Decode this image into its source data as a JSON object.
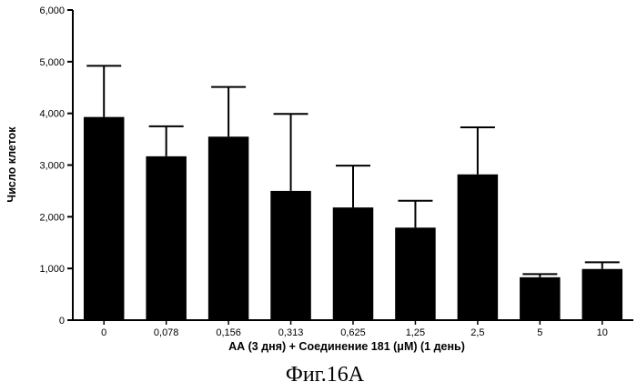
{
  "chart_data": {
    "type": "bar",
    "categories": [
      "0",
      "0,078",
      "0,156",
      "0,313",
      "0,625",
      "1,25",
      "2,5",
      "5",
      "10"
    ],
    "values": [
      3930,
      3170,
      3550,
      2500,
      2180,
      1790,
      2820,
      830,
      990
    ],
    "errors": [
      990,
      580,
      960,
      1490,
      810,
      520,
      910,
      60,
      130
    ],
    "xlabel": "АА (3 дня)  + Соединение 181 (μМ) (1 день)",
    "ylabel": "Число клеток",
    "ylim": [
      0,
      6000
    ],
    "yticks": [
      "0",
      "1,000",
      "2,000",
      "3,000",
      "4,000",
      "5,000",
      "6,000"
    ],
    "bar_color": "#000000",
    "error_bars": "upper",
    "grid": false
  },
  "caption": "Фиг.16А"
}
